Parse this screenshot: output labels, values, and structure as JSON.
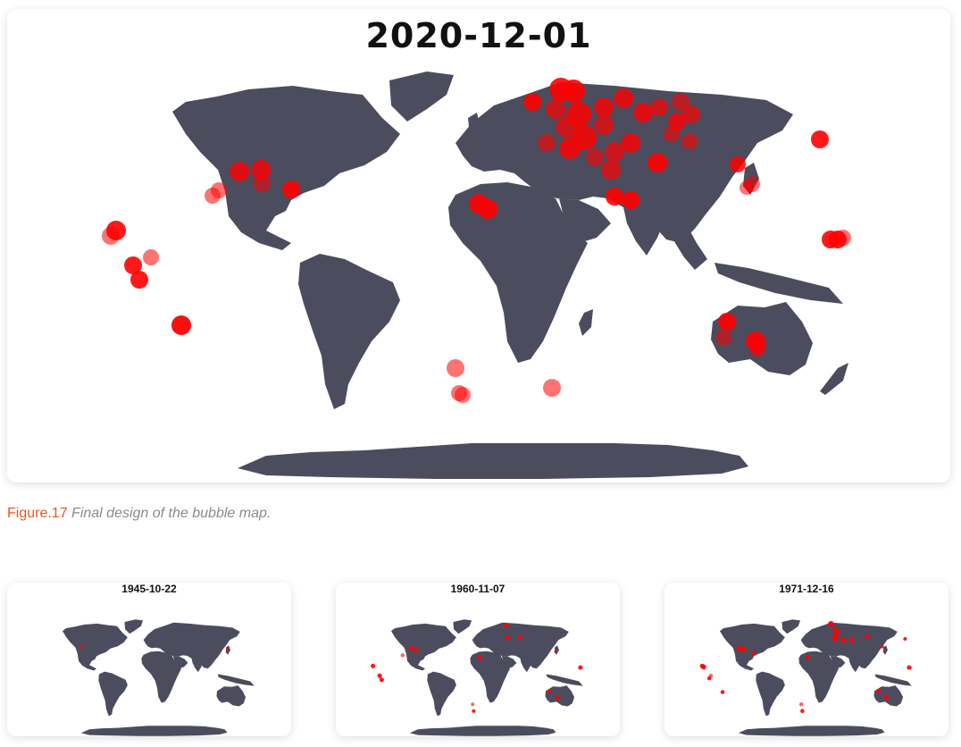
{
  "main": {
    "title": "2020-12-01",
    "land_color": "#4b4d5e",
    "bubble_color": "#ff0000"
  },
  "caption": {
    "label": "Figure.17",
    "text": "Final design of the bubble map."
  },
  "thumbnails": [
    {
      "title": "1945-10-22"
    },
    {
      "title": "1960-11-07"
    },
    {
      "title": "1971-12-16"
    }
  ]
}
